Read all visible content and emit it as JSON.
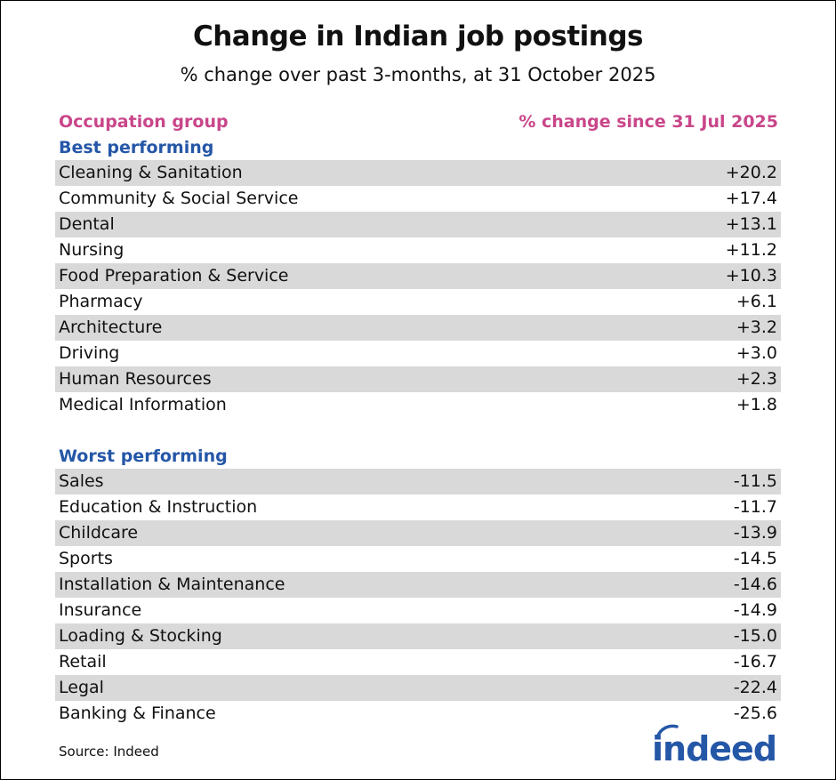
{
  "title": "Change in Indian job postings",
  "subtitle": "% change over past 3-months, at 31 October 2025",
  "colors": {
    "header_pink": "#c9468a",
    "section_blue": "#2557a7",
    "row_shade": "#d9d9d9",
    "logo_blue": "#2557a7"
  },
  "headers": {
    "left": "Occupation group",
    "right": "% change since 31 Jul 2025"
  },
  "sections": {
    "best": {
      "label": "Best performing",
      "rows": [
        {
          "name": "Cleaning & Sanitation",
          "value": "+20.2"
        },
        {
          "name": "Community & Social Service",
          "value": "+17.4"
        },
        {
          "name": "Dental",
          "value": "+13.1"
        },
        {
          "name": "Nursing",
          "value": "+11.2"
        },
        {
          "name": "Food Preparation & Service",
          "value": "+10.3"
        },
        {
          "name": "Pharmacy",
          "value": "+6.1"
        },
        {
          "name": "Architecture",
          "value": "+3.2"
        },
        {
          "name": "Driving",
          "value": "+3.0"
        },
        {
          "name": "Human Resources",
          "value": "+2.3"
        },
        {
          "name": "Medical Information",
          "value": "+1.8"
        }
      ]
    },
    "worst": {
      "label": "Worst performing",
      "rows": [
        {
          "name": "Sales",
          "value": "-11.5"
        },
        {
          "name": "Education & Instruction",
          "value": "-11.7"
        },
        {
          "name": "Childcare",
          "value": "-13.9"
        },
        {
          "name": "Sports",
          "value": "-14.5"
        },
        {
          "name": "Installation & Maintenance",
          "value": "-14.6"
        },
        {
          "name": "Insurance",
          "value": "-14.9"
        },
        {
          "name": "Loading & Stocking",
          "value": "-15.0"
        },
        {
          "name": "Retail",
          "value": "-16.7"
        },
        {
          "name": "Legal",
          "value": "-22.4"
        },
        {
          "name": "Banking & Finance",
          "value": "-25.6"
        }
      ]
    }
  },
  "footer": {
    "source": "Source: Indeed",
    "logo_text": "indeed"
  },
  "chart_data": {
    "type": "table",
    "title": "Change in Indian job postings",
    "subtitle": "% change over past 3-months, at 31 October 2025",
    "columns": [
      "Occupation group",
      "% change since 31 Jul 2025"
    ],
    "groups": [
      {
        "name": "Best performing",
        "categories": [
          "Cleaning & Sanitation",
          "Community & Social Service",
          "Dental",
          "Nursing",
          "Food Preparation & Service",
          "Pharmacy",
          "Architecture",
          "Driving",
          "Human Resources",
          "Medical Information"
        ],
        "values": [
          20.2,
          17.4,
          13.1,
          11.2,
          10.3,
          6.1,
          3.2,
          3.0,
          2.3,
          1.8
        ]
      },
      {
        "name": "Worst performing",
        "categories": [
          "Sales",
          "Education & Instruction",
          "Childcare",
          "Sports",
          "Installation & Maintenance",
          "Insurance",
          "Loading & Stocking",
          "Retail",
          "Legal",
          "Banking & Finance"
        ],
        "values": [
          -11.5,
          -11.7,
          -13.9,
          -14.5,
          -14.6,
          -14.9,
          -15.0,
          -16.7,
          -22.4,
          -25.6
        ]
      }
    ],
    "source": "Source: Indeed"
  }
}
